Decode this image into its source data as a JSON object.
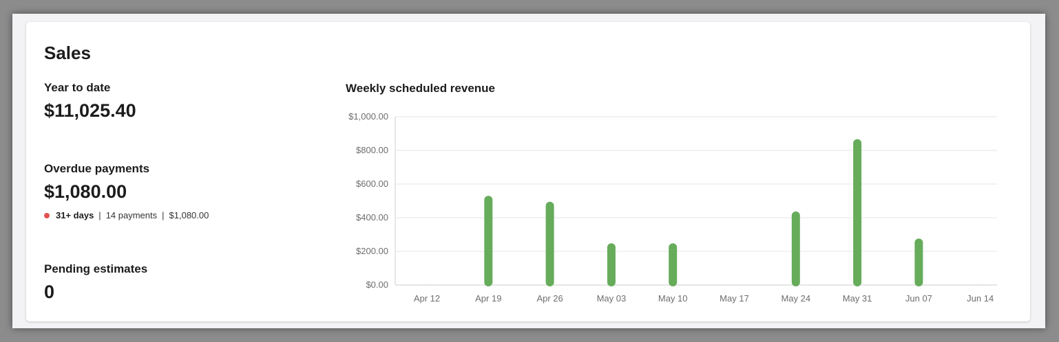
{
  "sales": {
    "title": "Sales",
    "year_to_date": {
      "label": "Year to date",
      "value": "$11,025.40"
    },
    "overdue": {
      "label": "Overdue payments",
      "value": "$1,080.00",
      "days": "31+ days",
      "payments": "14 payments",
      "amount": "$1,080.00",
      "separator": "|",
      "status_color": "#e0534f"
    },
    "pending": {
      "label": "Pending estimates",
      "value": "0"
    }
  },
  "chart_data": {
    "type": "bar",
    "title": "Weekly scheduled revenue",
    "categories": [
      "Apr 12",
      "Apr 19",
      "Apr 26",
      "May 03",
      "May 10",
      "May 17",
      "May 24",
      "May 31",
      "Jun 07",
      "Jun 14"
    ],
    "values": [
      0,
      530,
      495,
      248,
      248,
      0,
      437,
      867,
      276,
      0
    ],
    "ylim": [
      0,
      1000
    ],
    "yticks": [
      0,
      200,
      400,
      600,
      800,
      1000
    ],
    "ytick_labels": [
      "$0.00",
      "$200.00",
      "$400.00",
      "$600.00",
      "$800.00",
      "$1,000.00"
    ],
    "grid": true,
    "bar_color": "#66ac5b"
  }
}
